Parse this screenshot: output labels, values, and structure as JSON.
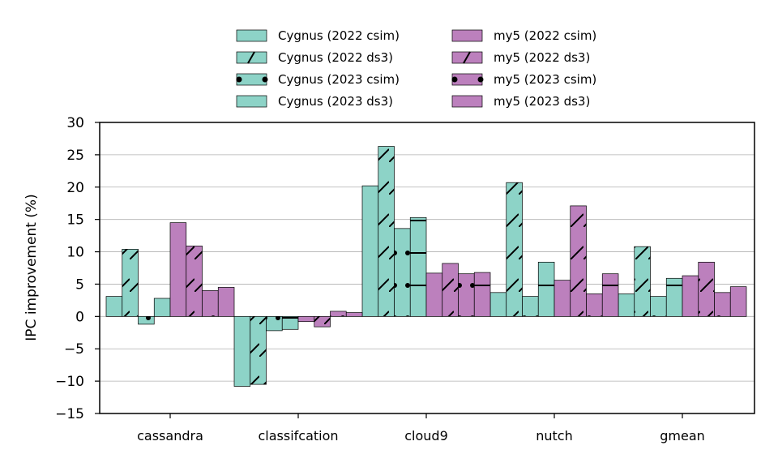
{
  "chart_data": {
    "type": "bar",
    "ylabel": "IPC improvement (%)",
    "ylim": [
      -15,
      30
    ],
    "yticks": [
      -15,
      -10,
      -5,
      0,
      5,
      10,
      15,
      20,
      25,
      30
    ],
    "ytick_labels": [
      "−15",
      "−10",
      "−5",
      "0",
      "5",
      "10",
      "15",
      "20",
      "25",
      "30"
    ],
    "grid": "horizontal",
    "legend_position": "top",
    "categories": [
      "cassandra",
      "classifcation",
      "cloud9",
      "nutch",
      "gmean"
    ],
    "series": [
      {
        "name": "Cygnus (2022 csim)",
        "color": "#8dd3c7",
        "hatch": "none",
        "values": [
          3.1,
          -10.8,
          20.2,
          3.7,
          3.5
        ]
      },
      {
        "name": "Cygnus (2022 ds3)",
        "color": "#8dd3c7",
        "hatch": "slash",
        "values": [
          10.4,
          -10.5,
          26.3,
          20.7,
          10.8
        ]
      },
      {
        "name": "Cygnus (2023 csim)",
        "color": "#8dd3c7",
        "hatch": "dot",
        "values": [
          -1.2,
          -2.2,
          13.6,
          3.1,
          3.1
        ]
      },
      {
        "name": "Cygnus (2023 ds3)",
        "color": "#8dd3c7",
        "hatch": "dash",
        "values": [
          2.8,
          -2.0,
          15.3,
          8.4,
          5.9
        ]
      },
      {
        "name": "my5 (2022 csim)",
        "color": "#bc80bd",
        "hatch": "none",
        "values": [
          14.5,
          -0.8,
          6.7,
          5.6,
          6.3
        ]
      },
      {
        "name": "my5 (2022 ds3)",
        "color": "#bc80bd",
        "hatch": "slash",
        "values": [
          10.9,
          -1.6,
          8.2,
          17.1,
          8.4
        ]
      },
      {
        "name": "my5 (2023 csim)",
        "color": "#bc80bd",
        "hatch": "dot",
        "values": [
          4.0,
          0.8,
          6.6,
          3.5,
          3.7
        ]
      },
      {
        "name": "my5 (2023 ds3)",
        "color": "#bc80bd",
        "hatch": "dash",
        "values": [
          4.5,
          0.6,
          6.8,
          6.6,
          4.6
        ]
      }
    ]
  }
}
